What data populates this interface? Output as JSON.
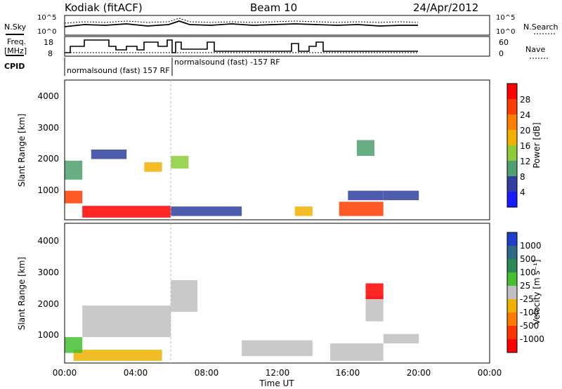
{
  "header": {
    "station": "Kodiak (fitACF)",
    "beam": "Beam 10",
    "date": "24/Apr/2012"
  },
  "top_panels": {
    "nsky_label": "N.Sky",
    "nsearch_label": "N.Search",
    "freq_label_1": "Freq.",
    "freq_label_2": "[MHz]",
    "nave_label": "Nave",
    "cpid_label": "CPID",
    "nsky_ticks_left": [
      "10^5",
      "10^0"
    ],
    "nsky_ticks_right": [
      "10^5",
      "10^0"
    ],
    "freq_ticks": [
      "18",
      "8"
    ],
    "nave_ticks": [
      "60",
      "0"
    ],
    "cpid_1": "normalsound (fast) 157 RF",
    "cpid_2": "normalsound (fast) -157 RF"
  },
  "axes": {
    "ylabel": "Slant Range [km]",
    "xlabel": "Time UT",
    "y_ticks": [
      "1000",
      "2000",
      "3000",
      "4000"
    ],
    "x_ticks": [
      "00:00",
      "04:00",
      "08:00",
      "12:00",
      "16:00",
      "20:00",
      "00:00"
    ]
  },
  "colorbars": {
    "power": {
      "label": "Power [dB]",
      "ticks": [
        "4",
        "8",
        "12",
        "16",
        "20",
        "24",
        "28"
      ],
      "colors": [
        "#1a1aff",
        "#2e3f9f",
        "#4f9f6f",
        "#8ccc3a",
        "#f2b000",
        "#ff7f00",
        "#ff3c00",
        "#ff0000"
      ]
    },
    "velocity": {
      "label": "Velocity [m s⁻¹]",
      "ticks": [
        "1000",
        "500",
        "100",
        "25",
        "-25",
        "-100",
        "-500",
        "-1000"
      ],
      "colors": [
        "#1f3fc8",
        "#2e6a88",
        "#2e8a55",
        "#44c030",
        "#c0c0c0",
        "#f0b000",
        "#ff7a00",
        "#ff3300",
        "#ff0000"
      ]
    }
  },
  "chart_data": {
    "type": "heatmap",
    "x_units": "hours UT",
    "y_units": "km",
    "xlim": [
      0,
      24
    ],
    "ylim": [
      180,
      4600
    ],
    "data_end_hour": 20,
    "power_blobs": [
      {
        "t0": 1.0,
        "t1": 6.0,
        "r0": 250,
        "r1": 620,
        "level": 7
      },
      {
        "t0": 0.0,
        "t1": 1.0,
        "r0": 700,
        "r1": 1100,
        "level": 6
      },
      {
        "t0": 0.0,
        "t1": 1.0,
        "r0": 1450,
        "r1": 2050,
        "level": 2
      },
      {
        "t0": 1.5,
        "t1": 3.5,
        "r0": 2100,
        "r1": 2400,
        "level": 1
      },
      {
        "t0": 4.5,
        "t1": 5.5,
        "r0": 1700,
        "r1": 2000,
        "level": 4
      },
      {
        "t0": 6.0,
        "t1": 7.0,
        "r0": 1800,
        "r1": 2200,
        "level": 3
      },
      {
        "t0": 6.0,
        "t1": 10.0,
        "r0": 300,
        "r1": 600,
        "level": 1
      },
      {
        "t0": 13.0,
        "t1": 14.0,
        "r0": 300,
        "r1": 600,
        "level": 4
      },
      {
        "t0": 15.5,
        "t1": 18.0,
        "r0": 300,
        "r1": 750,
        "level": 6
      },
      {
        "t0": 16.0,
        "t1": 18.0,
        "r0": 800,
        "r1": 1100,
        "level": 1
      },
      {
        "t0": 16.5,
        "t1": 17.5,
        "r0": 2200,
        "r1": 2700,
        "level": 2
      },
      {
        "t0": 18.0,
        "t1": 20.0,
        "r0": 800,
        "r1": 1100,
        "level": 1
      }
    ],
    "velocity_blobs": [
      {
        "t0": 0.5,
        "t1": 5.5,
        "r0": 250,
        "r1": 600,
        "level": 5
      },
      {
        "t0": 0.0,
        "t1": 1.0,
        "r0": 500,
        "r1": 1000,
        "level": 3
      },
      {
        "t0": 1.0,
        "t1": 6.0,
        "r0": 1000,
        "r1": 2000,
        "level": 4
      },
      {
        "t0": 6.0,
        "t1": 7.5,
        "r0": 1800,
        "r1": 2800,
        "level": 4
      },
      {
        "t0": 10.0,
        "t1": 14.0,
        "r0": 400,
        "r1": 900,
        "level": 4
      },
      {
        "t0": 15.0,
        "t1": 18.0,
        "r0": 250,
        "r1": 800,
        "level": 4
      },
      {
        "t0": 17.0,
        "t1": 18.0,
        "r0": 1500,
        "r1": 2300,
        "level": 4
      },
      {
        "t0": 17.0,
        "t1": 18.0,
        "r0": 2200,
        "r1": 2700,
        "level": 8
      },
      {
        "t0": 18.0,
        "t1": 20.0,
        "r0": 800,
        "r1": 1100,
        "level": 4
      }
    ]
  }
}
